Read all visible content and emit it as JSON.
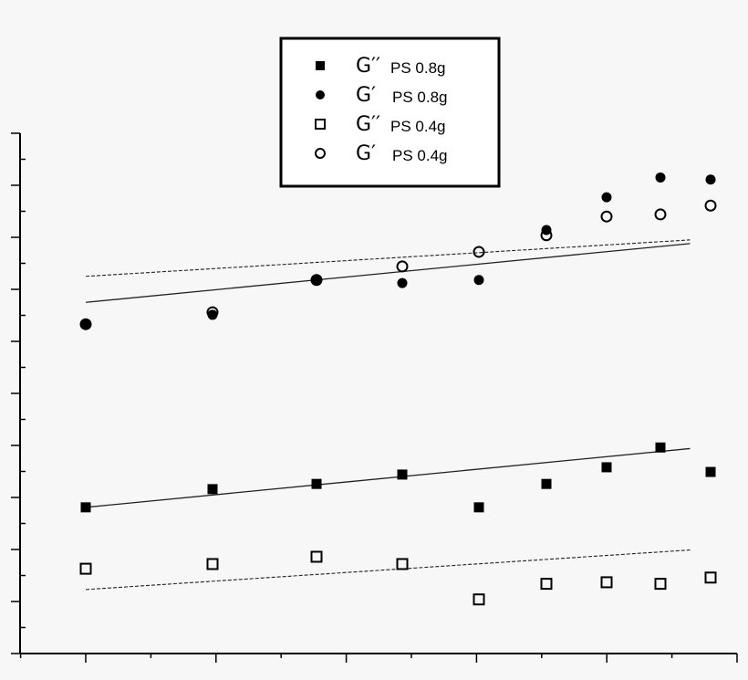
{
  "chart_data": {
    "type": "scatter",
    "title": "",
    "xlabel": "",
    "ylabel": "",
    "xlim": [
      0,
      10
    ],
    "ylim": [
      0,
      10
    ],
    "grid": false,
    "legend_position": "top-center",
    "series": [
      {
        "legend_main": "G′′",
        "legend_sub": "PS 0.8g",
        "marker": "filled-square",
        "x": [
          0.5,
          1.5,
          2.5,
          3.5,
          4.5,
          5.0,
          5.5,
          5.92,
          6.3
        ],
        "y": [
          2.81,
          3.16,
          3.26,
          3.44,
          2.81,
          3.26,
          3.58,
          3.96,
          3.49
        ],
        "fit": {
          "style": "solid",
          "y_start": 2.81,
          "y_end": 3.94
        }
      },
      {
        "legend_main": "G′",
        "legend_sub": "PS 0.8g",
        "marker": "filled-circle",
        "x": [
          0.5,
          1.5,
          2.5,
          3.5,
          4.5,
          5.0,
          5.5,
          5.92,
          6.3
        ],
        "y": [
          6.33,
          6.51,
          7.18,
          7.12,
          7.18,
          8.14,
          8.77,
          9.15,
          9.11
        ],
        "fit": {
          "style": "solid",
          "y_start": 6.75,
          "y_end": 7.88
        }
      },
      {
        "legend_main": "G′′",
        "legend_sub": "PS 0.4g",
        "marker": "open-square",
        "x": [
          0.5,
          1.5,
          2.5,
          3.5,
          4.5,
          5.0,
          5.5,
          5.92,
          6.3
        ],
        "y": [
          1.63,
          1.72,
          1.86,
          1.72,
          1.04,
          1.34,
          1.37,
          1.34,
          1.46
        ],
        "fit": {
          "style": "dashed",
          "y_start": 1.23,
          "y_end": 1.99
        }
      },
      {
        "legend_main": "G′",
        "legend_sub": "PS 0.4g",
        "marker": "open-circle",
        "x": [
          0.5,
          1.5,
          2.5,
          3.5,
          4.5,
          5.0,
          5.5,
          5.92,
          6.3
        ],
        "y": [
          6.33,
          6.56,
          7.18,
          7.44,
          7.72,
          8.04,
          8.4,
          8.44,
          8.61
        ],
        "fit": {
          "style": "dashed",
          "y_start": 7.25,
          "y_end": 7.95
        }
      }
    ]
  }
}
